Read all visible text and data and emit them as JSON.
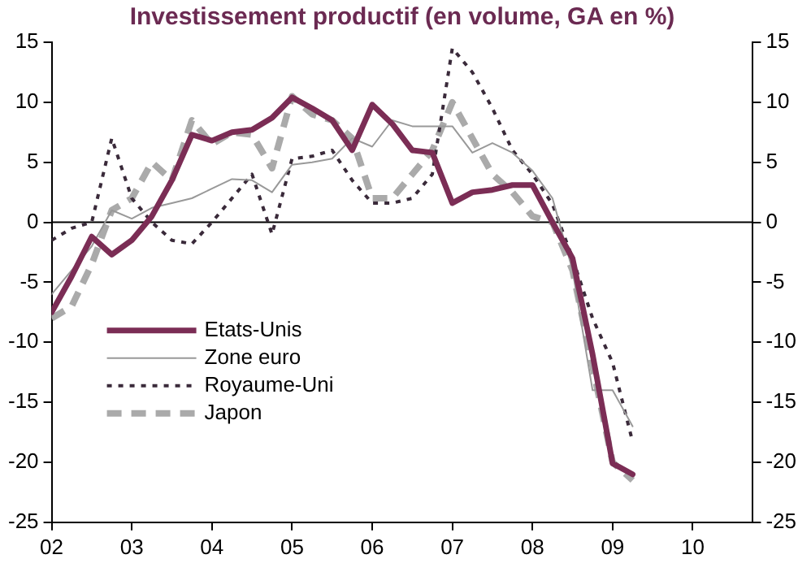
{
  "chart_data": {
    "type": "line",
    "title": "Investissement productif (en volume, GA en %)",
    "x": [
      2002,
      2002.25,
      2002.5,
      2002.75,
      2003,
      2003.25,
      2003.5,
      2003.75,
      2004,
      2004.25,
      2004.5,
      2004.75,
      2005,
      2005.25,
      2005.5,
      2005.75,
      2006,
      2006.25,
      2006.5,
      2006.75,
      2007,
      2007.25,
      2007.5,
      2007.75,
      2008,
      2008.25,
      2008.5,
      2008.75,
      2009,
      2009.25
    ],
    "series": [
      {
        "name": "Etats-Unis",
        "color": "#7b2d55",
        "line_style": "solid",
        "values": [
          -7.5,
          -4.5,
          -1.2,
          -2.7,
          -1.5,
          0.5,
          3.5,
          7.3,
          6.8,
          7.5,
          7.7,
          8.7,
          10.4,
          9.5,
          8.5,
          6,
          9.8,
          8.2,
          6,
          5.8,
          1.6,
          2.5,
          2.7,
          3.1,
          3.1,
          0,
          -3,
          -11,
          -20.1,
          -21
        ]
      },
      {
        "name": "Zone euro",
        "color": "#999999",
        "line_style": "solid",
        "values": [
          -6,
          -4,
          -2,
          1,
          0.3,
          1.2,
          1.6,
          2,
          2.8,
          3.6,
          3.5,
          2.5,
          4.8,
          5,
          5.3,
          7,
          6.3,
          8.5,
          8,
          8,
          8,
          5.8,
          6.6,
          5.8,
          4.3,
          2,
          -4,
          -14,
          -14,
          -17
        ]
      },
      {
        "name": "Royaume-Uni",
        "color": "#3a2a3a",
        "line_style": "dotted",
        "values": [
          -1.5,
          -0.5,
          0,
          7,
          2,
          0,
          -1.5,
          -1.8,
          0,
          2,
          4,
          -1,
          5.3,
          5.5,
          6,
          3.5,
          1.6,
          1.6,
          2,
          4,
          14.5,
          12.5,
          9.5,
          6,
          4,
          1.5,
          -3,
          -8,
          -11.7,
          -18.3
        ]
      },
      {
        "name": "Japon",
        "color": "#aaaaaa",
        "line_style": "dashed",
        "values": [
          -8,
          -7,
          -3.5,
          1,
          2,
          5,
          3.5,
          8.5,
          6.5,
          7.5,
          7.3,
          4.5,
          10.5,
          9,
          8.5,
          7,
          2,
          2,
          4,
          6,
          10,
          7,
          4,
          2.5,
          0.5,
          0,
          -4,
          -12,
          -20,
          -21.5
        ]
      }
    ],
    "xlim": [
      2002,
      2010.75
    ],
    "xticks": [
      {
        "value": 2002,
        "label": "02"
      },
      {
        "value": 2003,
        "label": "03"
      },
      {
        "value": 2004,
        "label": "04"
      },
      {
        "value": 2005,
        "label": "05"
      },
      {
        "value": 2006,
        "label": "06"
      },
      {
        "value": 2007,
        "label": "07"
      },
      {
        "value": 2008,
        "label": "08"
      },
      {
        "value": 2009,
        "label": "09"
      },
      {
        "value": 2010,
        "label": "10"
      }
    ],
    "ylim": [
      -25,
      15
    ],
    "yticks": [
      -25,
      -20,
      -15,
      -10,
      -5,
      0,
      5,
      10,
      15
    ],
    "y2lim": [
      -25,
      15
    ],
    "y2ticks": [
      -25,
      -20,
      -15,
      -10,
      -5,
      0,
      5,
      10,
      15
    ],
    "ref_lines": [
      {
        "axis": "y",
        "value": 0,
        "color": "#000000"
      }
    ],
    "grid": false,
    "legend": "bottom left",
    "marker": "none"
  }
}
